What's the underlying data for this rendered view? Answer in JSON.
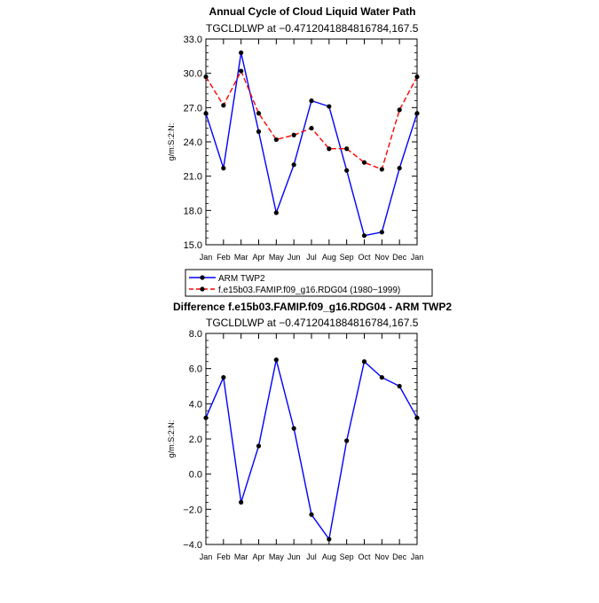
{
  "chart_data": [
    {
      "type": "line",
      "title": "Annual Cycle of Cloud Liquid Water Path",
      "subtitle": "TGCLDLWP at −0.4712041884816784,167.5",
      "ylabel": "g/m:S:2:N:",
      "xlabel": "",
      "categories": [
        "Jan",
        "Feb",
        "Mar",
        "Apr",
        "May",
        "Jun",
        "Jul",
        "Aug",
        "Sep",
        "Oct",
        "Nov",
        "Dec",
        "Jan"
      ],
      "ylim": [
        15.0,
        33.0
      ],
      "yticks": [
        "15.0",
        "18.0",
        "21.0",
        "24.0",
        "27.0",
        "30.0",
        "33.0"
      ],
      "grid": false,
      "legend_position": "below",
      "series": [
        {
          "name": "ARM TWP2",
          "color": "#0000ff",
          "dash": "solid",
          "values": [
            26.5,
            21.7,
            31.8,
            24.9,
            17.8,
            22.0,
            27.6,
            27.1,
            21.5,
            15.8,
            16.1,
            21.7,
            26.5
          ]
        },
        {
          "name": "f.e15b03.FAMIP.f09_g16.RDG04 (1980−1999)",
          "color": "#ff0000",
          "dash": "dashed",
          "values": [
            29.7,
            27.2,
            30.2,
            26.5,
            24.2,
            24.6,
            25.2,
            23.4,
            23.4,
            22.2,
            21.6,
            26.8,
            29.7
          ]
        }
      ]
    },
    {
      "type": "line",
      "title": "Difference f.e15b03.FAMIP.f09_g16.RDG04 - ARM TWP2",
      "subtitle": "TGCLDLWP at −0.4712041884816784,167.5",
      "ylabel": "g/m:S:2:N:",
      "xlabel": "",
      "categories": [
        "Jan",
        "Feb",
        "Mar",
        "Apr",
        "May",
        "Jun",
        "Jul",
        "Aug",
        "Sep",
        "Oct",
        "Nov",
        "Dec",
        "Jan"
      ],
      "ylim": [
        -4.0,
        8.0
      ],
      "yticks": [
        "−4.0",
        "−2.0",
        "0.0",
        "2.0",
        "4.0",
        "6.0",
        "8.0"
      ],
      "grid": false,
      "series": [
        {
          "color": "#0000ff",
          "dash": "solid",
          "values": [
            3.2,
            5.5,
            -1.6,
            1.6,
            6.5,
            2.6,
            -2.3,
            -3.7,
            1.9,
            6.4,
            5.5,
            5.0,
            3.2
          ]
        }
      ]
    }
  ]
}
